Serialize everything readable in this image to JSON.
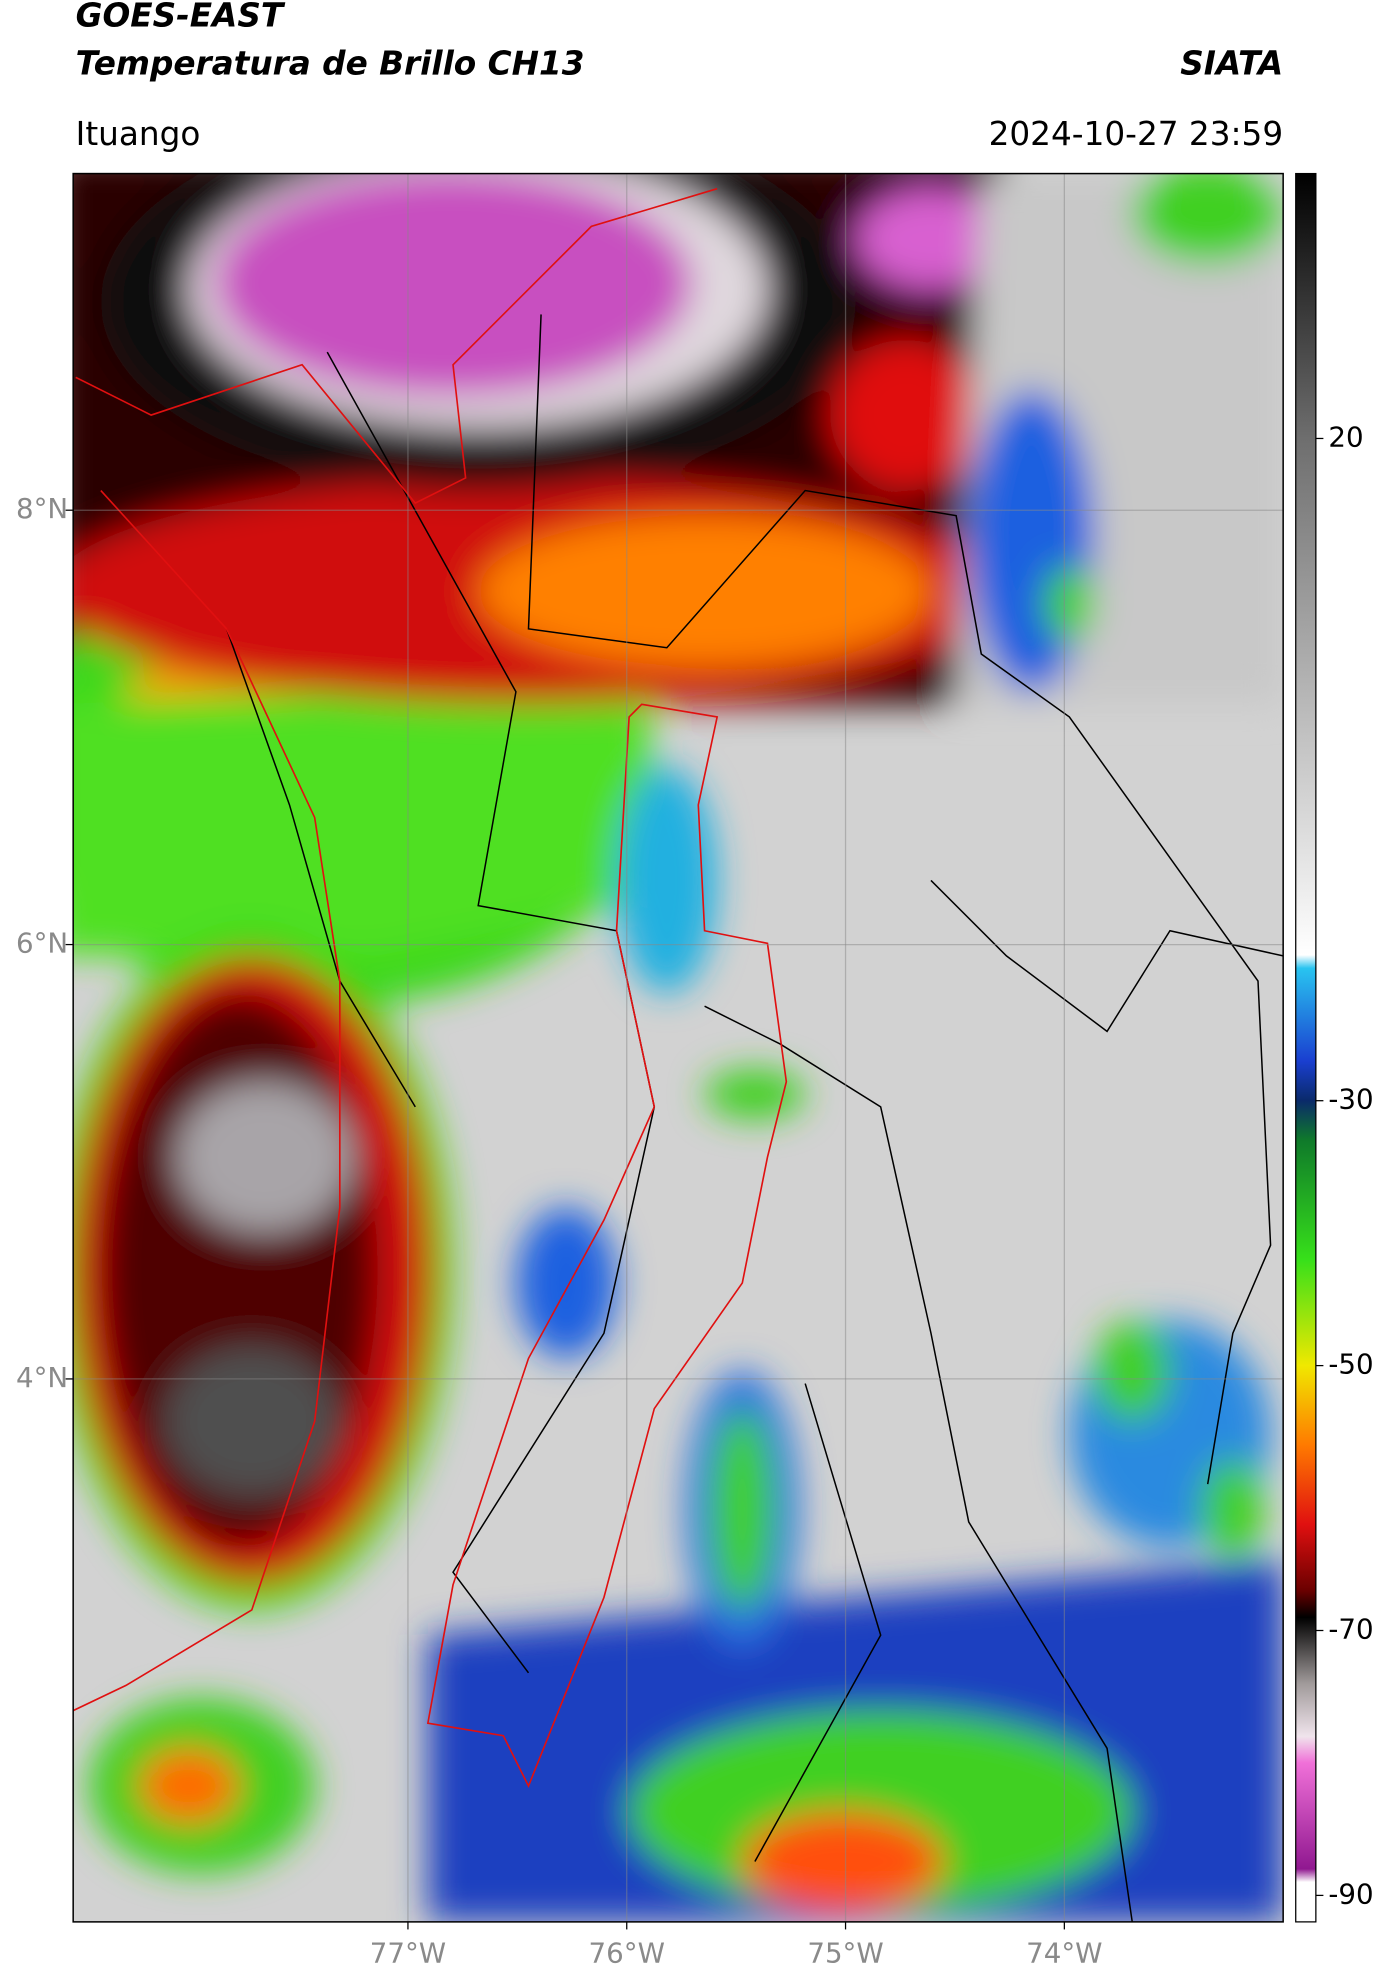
{
  "header": {
    "title": "GOES-EAST",
    "subtitle": "Temperatura de Brillo CH13",
    "credit": "SIATA",
    "location": "Ituango",
    "datetime": "2024-10-27 23:59"
  },
  "map": {
    "lonlim": [
      -78.53,
      -73.0
    ],
    "latlim": [
      1.5,
      9.55
    ],
    "lonticks": [
      {
        "value": -77,
        "label": "77°W"
      },
      {
        "value": -76,
        "label": "76°W"
      },
      {
        "value": -75,
        "label": "75°W"
      },
      {
        "value": -74,
        "label": "74°W"
      }
    ],
    "latticks": [
      {
        "value": 8,
        "label": "8°N"
      },
      {
        "value": 6,
        "label": "6°N"
      },
      {
        "value": 4,
        "label": "4°N"
      }
    ],
    "grid": true
  },
  "colorbar": {
    "lim": [
      -92,
      40
    ],
    "ticks": [
      20,
      -30,
      -50,
      -70,
      -90
    ],
    "colormap": [
      {
        "value": 40,
        "color": "#000000"
      },
      {
        "value": 20,
        "color": "#6e6e6e"
      },
      {
        "value": -19,
        "color": "#ffffff"
      },
      {
        "value": -20,
        "color": "#29c4f0"
      },
      {
        "value": -27,
        "color": "#1a3fd0"
      },
      {
        "value": -30,
        "color": "#0a2a6a"
      },
      {
        "value": -33,
        "color": "#0f7a2a"
      },
      {
        "value": -42,
        "color": "#37e01a"
      },
      {
        "value": -50,
        "color": "#f0e800"
      },
      {
        "value": -56,
        "color": "#ff7a00"
      },
      {
        "value": -62,
        "color": "#e01010"
      },
      {
        "value": -67,
        "color": "#6a0000"
      },
      {
        "value": -69,
        "color": "#000000"
      },
      {
        "value": -74,
        "color": "#a09a9a"
      },
      {
        "value": -78,
        "color": "#f0e4ec"
      },
      {
        "value": -80,
        "color": "#f070d8"
      },
      {
        "value": -88,
        "color": "#901890"
      },
      {
        "value": -89,
        "color": "#ffffff"
      }
    ]
  }
}
